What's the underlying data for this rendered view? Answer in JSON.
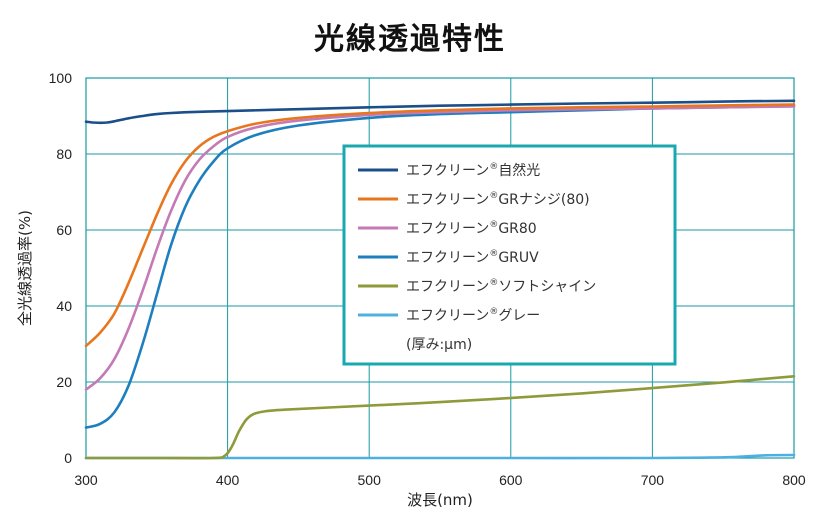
{
  "chart_data": {
    "type": "line",
    "title": "光線透過特性",
    "xlabel": "波長(nm)",
    "ylabel": "全光線透過率(%)",
    "xlim": [
      300,
      800
    ],
    "ylim": [
      0,
      100
    ],
    "xticks": [
      "300",
      "400",
      "500",
      "600",
      "700",
      "800"
    ],
    "yticks": [
      "0",
      "20",
      "40",
      "60",
      "80",
      "100"
    ],
    "grid": true,
    "legend_position": "center",
    "legend_note": "(厚み:μm)",
    "series": [
      {
        "name": "エフクリーン®自然光",
        "label_main": "エフクリーン",
        "label_sup": "®",
        "label_rest": "自然光",
        "color": "#1b4f8a",
        "x": [
          300,
          305,
          310,
          315,
          320,
          330,
          340,
          350,
          360,
          380,
          400,
          450,
          500,
          550,
          600,
          650,
          700,
          750,
          800
        ],
        "y": [
          88.5,
          88.3,
          88.2,
          88.3,
          88.6,
          89.4,
          90.0,
          90.5,
          90.8,
          91.1,
          91.3,
          91.8,
          92.3,
          92.7,
          93.0,
          93.3,
          93.5,
          93.8,
          94.0
        ]
      },
      {
        "name": "エフクリーン®GRナシジ(80)",
        "label_main": "エフクリーン",
        "label_sup": "®",
        "label_rest": "GRナシジ(80)",
        "color": "#e8761e",
        "x": [
          300,
          310,
          320,
          330,
          340,
          350,
          360,
          370,
          380,
          390,
          400,
          420,
          450,
          500,
          550,
          600,
          650,
          700,
          750,
          800
        ],
        "y": [
          29.5,
          33,
          38,
          46,
          55,
          64,
          72,
          78,
          82,
          84.5,
          86,
          88,
          89.5,
          90.8,
          91.5,
          92.0,
          92.3,
          92.5,
          92.8,
          93.0
        ]
      },
      {
        "name": "エフクリーン®GR80",
        "label_main": "エフクリーン",
        "label_sup": "®",
        "label_rest": "GR80",
        "color": "#c47ab5",
        "x": [
          300,
          310,
          320,
          330,
          340,
          350,
          360,
          370,
          380,
          390,
          400,
          420,
          450,
          500,
          550,
          600,
          650,
          700,
          750,
          800
        ],
        "y": [
          18,
          21,
          26,
          34,
          44,
          55,
          65,
          73,
          78.5,
          82,
          84.5,
          87,
          88.8,
          90.3,
          91.0,
          91.5,
          91.8,
          92.0,
          92.3,
          92.5
        ]
      },
      {
        "name": "エフクリーン®GRUV",
        "label_main": "エフクリーン",
        "label_sup": "®",
        "label_rest": "GRUV",
        "color": "#1e7fbf",
        "x": [
          300,
          310,
          320,
          330,
          340,
          350,
          360,
          370,
          380,
          390,
          400,
          420,
          450,
          500,
          550,
          600,
          650,
          700,
          750,
          800
        ],
        "y": [
          8,
          9,
          12,
          19,
          30,
          43,
          56,
          66,
          73,
          78,
          81.5,
          85,
          87.5,
          89.5,
          90.5,
          91.0,
          91.5,
          92.0,
          92.3,
          92.6
        ]
      },
      {
        "name": "エフクリーン®ソフトシャイン",
        "label_main": "エフクリーン",
        "label_sup": "®",
        "label_rest": "ソフトシャイン",
        "color": "#8f9a3a",
        "x": [
          300,
          350,
          390,
          398,
          403,
          408,
          413,
          418,
          425,
          440,
          500,
          550,
          600,
          650,
          700,
          750,
          800
        ],
        "y": [
          0,
          0,
          0,
          0.6,
          3,
          7,
          10,
          11.5,
          12.2,
          12.7,
          13.8,
          14.7,
          15.8,
          17.0,
          18.4,
          19.9,
          21.5
        ]
      },
      {
        "name": "エフクリーン®グレー",
        "label_main": "エフクリーン",
        "label_sup": "®",
        "label_rest": "グレー",
        "color": "#4db0e0",
        "x": [
          300,
          400,
          500,
          600,
          700,
          740,
          760,
          780,
          800
        ],
        "y": [
          0,
          0,
          0,
          0,
          0,
          0.1,
          0.3,
          0.7,
          0.8
        ]
      }
    ]
  }
}
